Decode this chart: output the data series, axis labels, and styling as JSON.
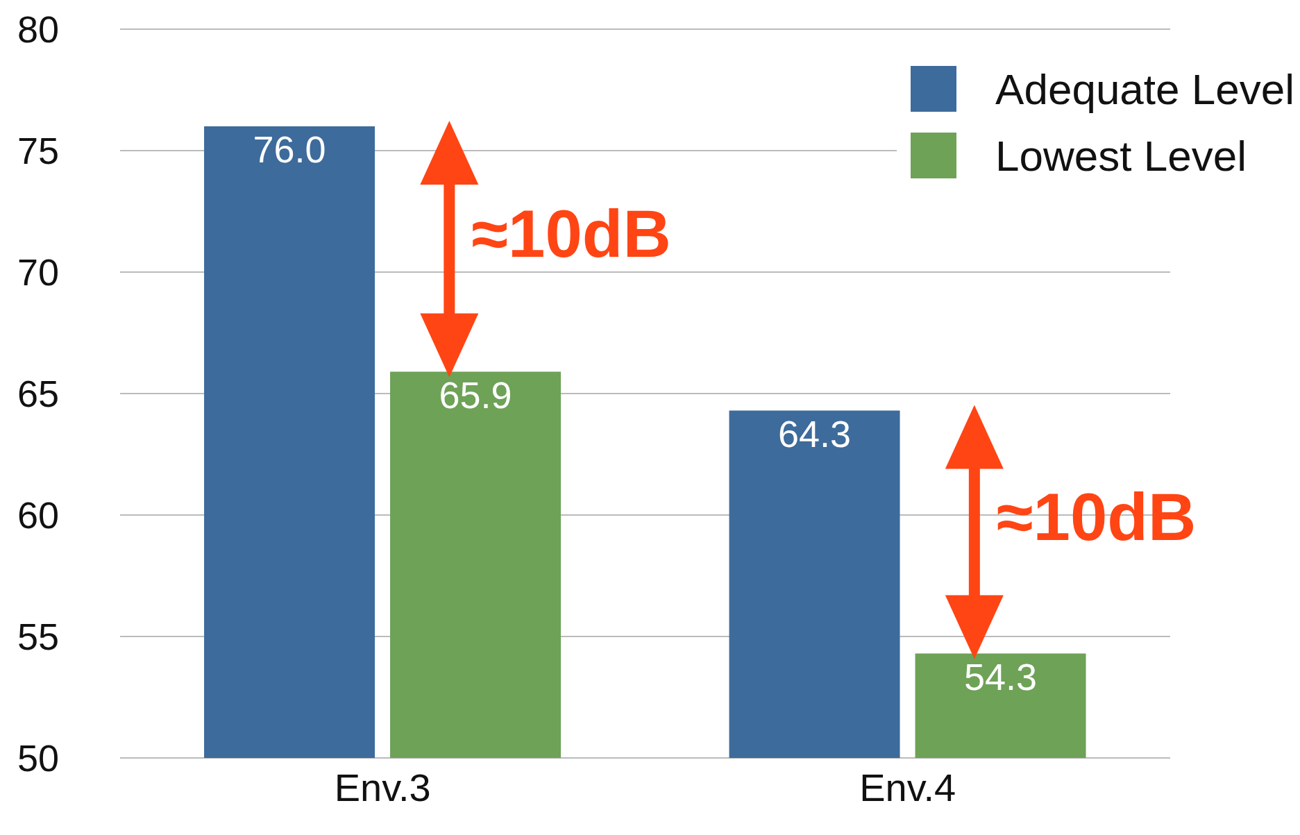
{
  "chart_data": {
    "type": "bar",
    "categories": [
      "Env.3",
      "Env.4"
    ],
    "series": [
      {
        "name": "Adequate Level",
        "color": "#3d6b9b",
        "values": [
          76.0,
          64.3
        ],
        "value_labels": [
          "76.0",
          "64.3"
        ]
      },
      {
        "name": "Lowest Level",
        "color": "#6ea257",
        "values": [
          65.9,
          54.3
        ],
        "value_labels": [
          "65.9",
          "54.3"
        ]
      }
    ],
    "ylim": [
      50,
      80
    ],
    "yticks": [
      50,
      55,
      60,
      65,
      70,
      75,
      80
    ],
    "grid": "y",
    "legend": "top right",
    "annotations": [
      "≈10dB",
      "≈10dB"
    ]
  }
}
